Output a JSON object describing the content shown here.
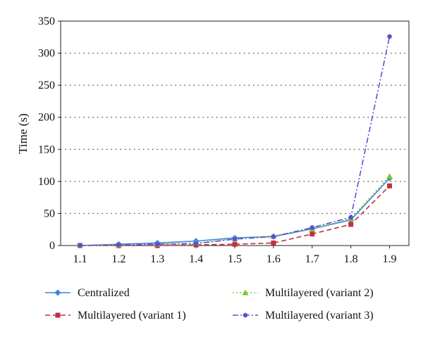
{
  "chart_data": {
    "type": "line",
    "title": "",
    "xlabel": "",
    "ylabel": "Time (s)",
    "x": [
      1.1,
      1.2,
      1.3,
      1.4,
      1.5,
      1.6,
      1.7,
      1.8,
      1.9
    ],
    "x_tick_labels": [
      "1.1",
      "1.2",
      "1.3",
      "1.4",
      "1.5",
      "1.6",
      "1.7",
      "1.8",
      "1.9"
    ],
    "ylim": [
      0,
      350
    ],
    "y_ticks": [
      0,
      50,
      100,
      150,
      200,
      250,
      300,
      350
    ],
    "grid": "horizontal dotted",
    "legend_position": "bottom",
    "series": [
      {
        "name": "Centralized",
        "color": "#3a87d9",
        "marker": "diamond",
        "line": "solid",
        "values": [
          0,
          2,
          4,
          7,
          12,
          14,
          26,
          40,
          105
        ]
      },
      {
        "name": "Multilayered (variant 1)",
        "color": "#c0303b",
        "marker": "square",
        "line": "dashed",
        "values": [
          0,
          0,
          0,
          1,
          2,
          4,
          18,
          33,
          93
        ]
      },
      {
        "name": "Multilayered (variant 2)",
        "color": "#7acc2c",
        "marker": "triangle",
        "line": "dotted",
        "values": [
          0,
          1,
          2,
          4,
          11,
          15,
          26,
          42,
          108
        ]
      },
      {
        "name": "Multilayered (variant 3)",
        "color": "#5b4fd9",
        "marker": "circle",
        "line": "dashdot",
        "values": [
          0,
          1,
          2,
          3,
          10,
          14,
          28,
          44,
          326
        ]
      }
    ]
  }
}
